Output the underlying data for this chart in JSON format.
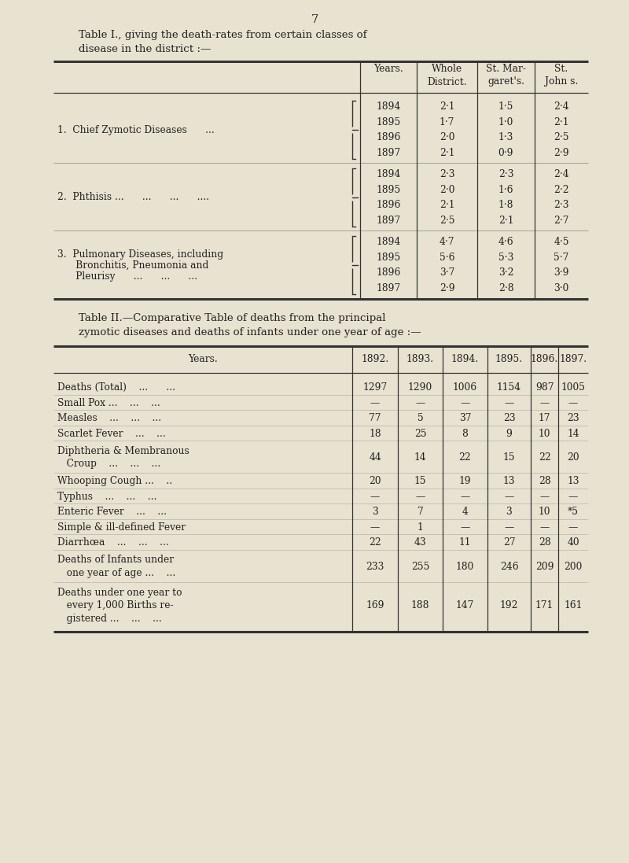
{
  "page_number": "7",
  "bg_color": "#e8e2d0",
  "text_color": "#222222",
  "line_color": "#333333",
  "table1_title_line1": "Table I., giving the death-rates from certain classes of",
  "table1_title_line2": "disease in the district :—",
  "table1_col_headers": [
    "Years.",
    "Whole\nDistrict.",
    "St. Mar-\ngaret's.",
    "St.\nJohn s."
  ],
  "table1_sections": [
    {
      "label_lines": [
        "1.  Chief Zymotic Diseases      ..."
      ],
      "rows": [
        [
          "1894",
          "2·1",
          "1·5",
          "2·4"
        ],
        [
          "1895",
          "1·7",
          "1·0",
          "2·1"
        ],
        [
          "1896",
          "2·0",
          "1·3",
          "2·5"
        ],
        [
          "1897",
          "2·1",
          "0·9",
          "2·9"
        ]
      ]
    },
    {
      "label_lines": [
        "2.  Phthisis ...      ...      ...      ...."
      ],
      "rows": [
        [
          "1894",
          "2·3",
          "2·3",
          "2·4"
        ],
        [
          "1895",
          "2·0",
          "1·6",
          "2·2"
        ],
        [
          "1896",
          "2·1",
          "1·8",
          "2·3"
        ],
        [
          "1897",
          "2·5",
          "2·1",
          "2·7"
        ]
      ]
    },
    {
      "label_lines": [
        "3.  Pulmonary Diseases, including",
        "      Bronchitis, Pneumonia and",
        "      Pleurisy      ...      ...      ..."
      ],
      "rows": [
        [
          "1894",
          "4·7",
          "4·6",
          "4·5"
        ],
        [
          "1895",
          "5·6",
          "5·3",
          "5·7"
        ],
        [
          "1896",
          "3·7",
          "3·2",
          "3·9"
        ],
        [
          "1897",
          "2·9",
          "2·8",
          "3·0"
        ]
      ]
    }
  ],
  "table2_title_line1": "Table II.—Comparative Table of deaths from the principal",
  "table2_title_line2": "zymotic diseases and deaths of infants under one year of age :—",
  "table2_col_headers": [
    "Years.",
    "1892.",
    "1893.",
    "1894.",
    "1895.",
    "1896.",
    "1897."
  ],
  "table2_rows": [
    [
      "Deaths (Total)    ...      ...",
      "1297",
      "1290",
      "1006",
      "1154",
      "987",
      "1005"
    ],
    [
      "Small Pox ...    ...    ...",
      "—",
      "—",
      "—",
      "—",
      "—",
      "—"
    ],
    [
      "Measles    ...    ...    ...",
      "77",
      "5",
      "37",
      "23",
      "17",
      "23"
    ],
    [
      "Scarlet Fever    ...    ...",
      "18",
      "25",
      "8",
      "9",
      "10",
      "14"
    ],
    [
      "Diphtheria & Membranous\n   Croup    ...    ...    ...",
      "44",
      "14",
      "22",
      "15",
      "22",
      "20"
    ],
    [
      "Whooping Cough ...    ..",
      "20",
      "15",
      "19",
      "13",
      "28",
      "13"
    ],
    [
      "Typhus    ...    ...    ...",
      "—",
      "—",
      "—",
      "—",
      "—",
      "—"
    ],
    [
      "Enteric Fever    ...    ...",
      "3",
      "7",
      "4",
      "3",
      "10",
      "*5"
    ],
    [
      "Simple & ill-defined Fever",
      "—",
      "1",
      "—",
      "—",
      "—",
      "—"
    ],
    [
      "Diarrhœa    ...    ...    ...",
      "22",
      "43",
      "11",
      "27",
      "28",
      "40"
    ],
    [
      "Deaths of Infants under\n   one year of age ...    ...",
      "233",
      "255",
      "180",
      "246",
      "209",
      "200"
    ],
    [
      "Deaths under one year to\n   every 1,000 Births re-\n   gistered ...    ...    ...",
      "169",
      "188",
      "147",
      "192",
      "171",
      "161"
    ]
  ]
}
